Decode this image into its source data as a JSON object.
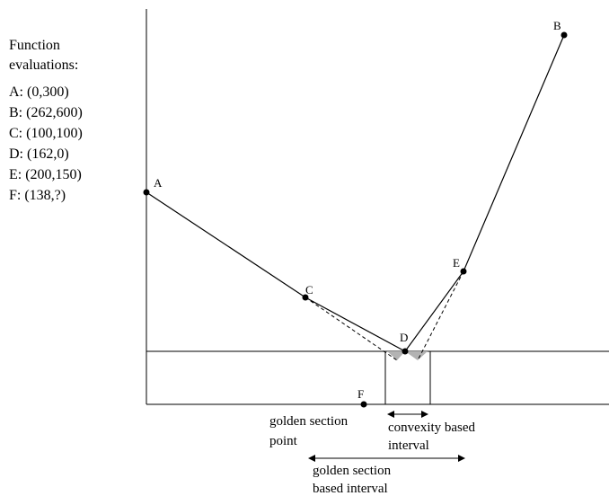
{
  "legend": {
    "title_line1": "Function",
    "title_line2": "evaluations:",
    "entries": [
      "A: (0,300)",
      "B: (262,600)",
      "C: (100,100)",
      "D: (162,0)",
      "E: (200,150)",
      "F: (138,?)"
    ]
  },
  "points": {
    "A": {
      "label": "A"
    },
    "B": {
      "label": "B"
    },
    "C": {
      "label": "C"
    },
    "D": {
      "label": "D"
    },
    "E": {
      "label": "E"
    },
    "F": {
      "label": "F"
    }
  },
  "annotations": {
    "golden_point_line1": "golden section",
    "golden_point_line2": "point",
    "convexity_line1": "convexity based",
    "convexity_line2": "interval",
    "golden_interval_line1": "golden section",
    "golden_interval_line2": "based interval"
  },
  "colors": {
    "ink": "#000000",
    "shade": "#b3b3b3"
  }
}
